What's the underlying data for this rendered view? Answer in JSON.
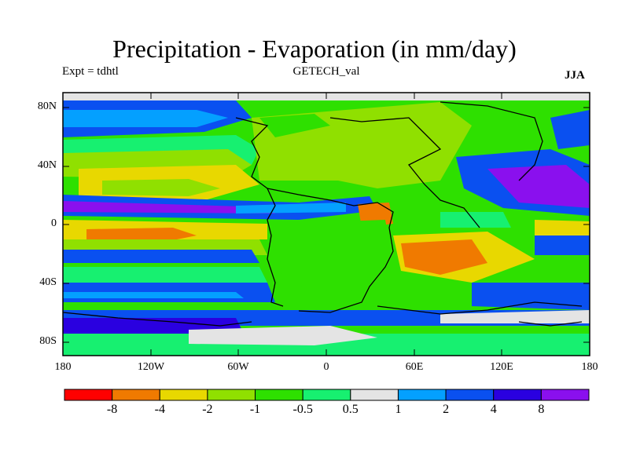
{
  "title": "Precipitation - Evaporation (in mm/day)",
  "subtitle_left": "Expt = tdhtl",
  "subtitle_center": "GETECH_val",
  "subtitle_right": "JJA",
  "lat_ticks": [
    "80N",
    "40N",
    "0",
    "40S",
    "80S"
  ],
  "lon_ticks": [
    "180",
    "120W",
    "60W",
    "0",
    "60E",
    "120E",
    "180"
  ],
  "colorbar": {
    "colors": [
      "#ff0000",
      "#f07a00",
      "#e8d800",
      "#90e000",
      "#2ee000",
      "#17f070",
      "#e4e4e4",
      "#04a0ff",
      "#0a50f0",
      "#2a00e0",
      "#8a10ee"
    ],
    "labels": [
      "-8",
      "-4",
      "-2",
      "-1",
      "-0.5",
      "0.5",
      "1",
      "2",
      "4",
      "8"
    ]
  }
}
